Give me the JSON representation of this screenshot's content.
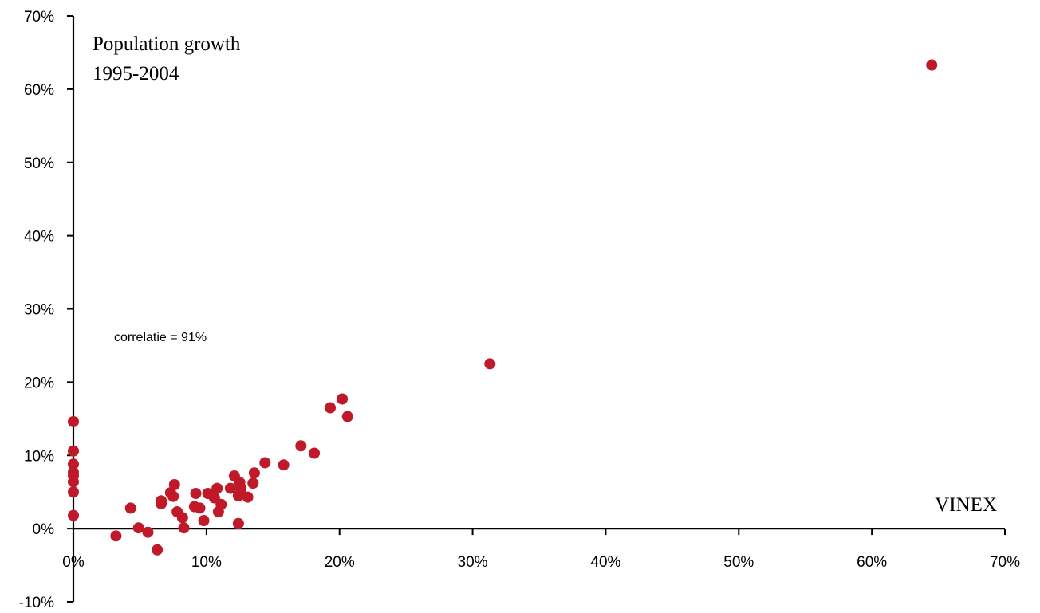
{
  "chart_data": {
    "type": "scatter",
    "title_lines": [
      "Population growth",
      "1995-2004"
    ],
    "xlabel": "VINEX",
    "ylabel": "",
    "annotation": "correlatie = 91%",
    "xlim": [
      0,
      70
    ],
    "ylim": [
      -10,
      70
    ],
    "x_ticks": [
      0,
      10,
      20,
      30,
      40,
      50,
      60,
      70
    ],
    "y_ticks": [
      -10,
      0,
      10,
      20,
      30,
      40,
      50,
      60,
      70
    ],
    "x_tick_labels": [
      "0%",
      "10%",
      "20%",
      "30%",
      "40%",
      "50%",
      "60%",
      "70%"
    ],
    "y_tick_labels": [
      "-10%",
      "0%",
      "10%",
      "20%",
      "30%",
      "40%",
      "50%",
      "60%",
      "70%"
    ],
    "grid": false,
    "marker_color": "#C0192A",
    "points": [
      {
        "x": 0,
        "y": 14.6
      },
      {
        "x": 0,
        "y": 10.6
      },
      {
        "x": 0,
        "y": 8.8
      },
      {
        "x": 0,
        "y": 7.7
      },
      {
        "x": 0,
        "y": 7.2
      },
      {
        "x": 0,
        "y": 6.4
      },
      {
        "x": 0,
        "y": 5.0
      },
      {
        "x": 0,
        "y": 1.8
      },
      {
        "x": 3.2,
        "y": -1.0
      },
      {
        "x": 4.3,
        "y": 2.8
      },
      {
        "x": 4.9,
        "y": 0.1
      },
      {
        "x": 5.6,
        "y": -0.5
      },
      {
        "x": 6.3,
        "y": -2.9
      },
      {
        "x": 6.6,
        "y": 3.8
      },
      {
        "x": 6.6,
        "y": 3.4
      },
      {
        "x": 7.3,
        "y": 4.9
      },
      {
        "x": 7.5,
        "y": 4.4
      },
      {
        "x": 7.6,
        "y": 6.0
      },
      {
        "x": 7.8,
        "y": 2.3
      },
      {
        "x": 8.2,
        "y": 1.5
      },
      {
        "x": 8.3,
        "y": 0.1
      },
      {
        "x": 9.1,
        "y": 3.0
      },
      {
        "x": 9.2,
        "y": 4.8
      },
      {
        "x": 9.5,
        "y": 2.8
      },
      {
        "x": 9.8,
        "y": 1.1
      },
      {
        "x": 10.1,
        "y": 4.8
      },
      {
        "x": 10.6,
        "y": 4.2
      },
      {
        "x": 10.8,
        "y": 5.5
      },
      {
        "x": 10.9,
        "y": 2.3
      },
      {
        "x": 11.1,
        "y": 3.3
      },
      {
        "x": 11.8,
        "y": 5.5
      },
      {
        "x": 12.1,
        "y": 7.2
      },
      {
        "x": 12.4,
        "y": 4.5
      },
      {
        "x": 12.4,
        "y": 0.7
      },
      {
        "x": 12.5,
        "y": 6.3
      },
      {
        "x": 12.6,
        "y": 5.5
      },
      {
        "x": 12.6,
        "y": 4.8
      },
      {
        "x": 13.1,
        "y": 4.3
      },
      {
        "x": 13.5,
        "y": 6.2
      },
      {
        "x": 13.6,
        "y": 7.6
      },
      {
        "x": 14.4,
        "y": 9.0
      },
      {
        "x": 15.8,
        "y": 8.7
      },
      {
        "x": 17.1,
        "y": 11.3
      },
      {
        "x": 18.1,
        "y": 10.3
      },
      {
        "x": 19.3,
        "y": 16.5
      },
      {
        "x": 20.2,
        "y": 17.7
      },
      {
        "x": 20.6,
        "y": 15.3
      },
      {
        "x": 31.3,
        "y": 22.5
      },
      {
        "x": 64.5,
        "y": 63.3
      }
    ]
  }
}
